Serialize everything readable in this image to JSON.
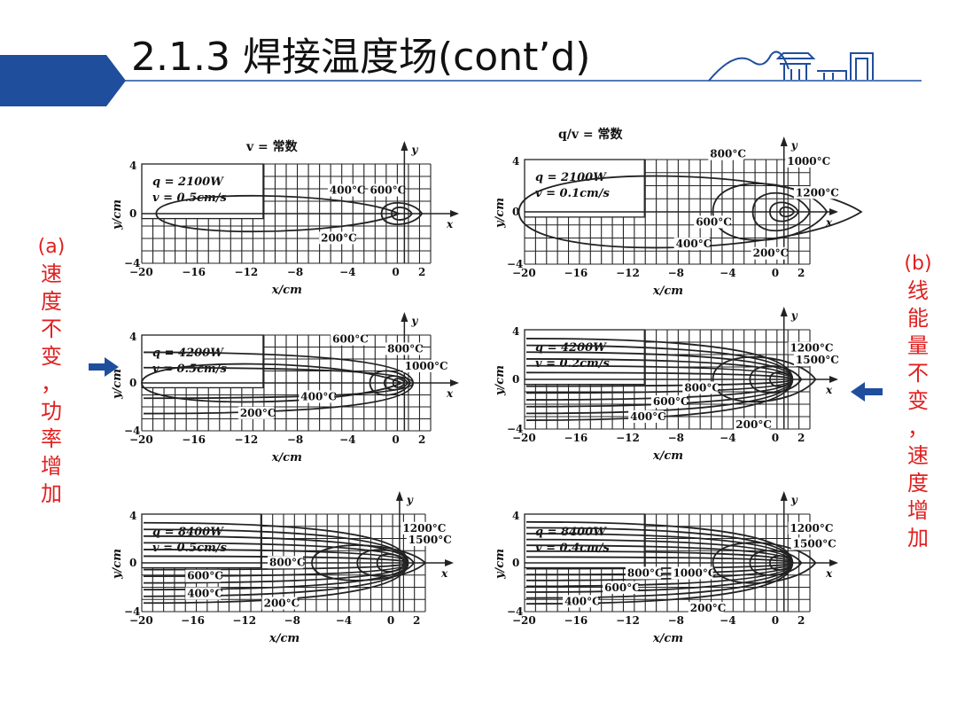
{
  "title": "2.1.3 焊接温度场(cont’d)",
  "colors": {
    "accent_blue": "#1f4e9c",
    "label_red": "#e02020",
    "line": "#222222"
  },
  "left_label": [
    "(a)",
    "速",
    "度",
    "不",
    "变",
    "，",
    "功",
    "率",
    "增",
    "加"
  ],
  "right_label": [
    "(b)",
    "线",
    "能",
    "量",
    "不",
    "变",
    "，",
    "速",
    "度",
    "增",
    "加"
  ],
  "col_a_header": "v = 常数",
  "col_b_header": "q/v = 常数",
  "axis": {
    "x_label": "x/cm",
    "y_label": "y/cm",
    "x_mark": "x",
    "y_mark": "y",
    "x_ticks": [
      "−20",
      "−16",
      "−12",
      "−8",
      "−4",
      "0",
      "2"
    ],
    "y_ticks": [
      "4",
      "0",
      "−4"
    ]
  },
  "panels": [
    {
      "id": "a1",
      "q": "q = 2100W",
      "v": "v = 0.5cm/s",
      "labels": [
        "400°C",
        "600°C",
        "200°C"
      ]
    },
    {
      "id": "a2",
      "q": "q = 4200W",
      "v": "v = 0.5cm/s",
      "labels": [
        "600°C",
        "800°C",
        "1000°C",
        "400°C",
        "200°C"
      ]
    },
    {
      "id": "a3",
      "q": "q = 8400W",
      "v": "v = 0.5cm/s",
      "labels": [
        "1200°C",
        "1500°C",
        "800°C",
        "600°C",
        "400°C",
        "200°C"
      ]
    },
    {
      "id": "b1",
      "q": "q = 2100W",
      "v": "v = 0.1cm/s",
      "labels": [
        "800°C",
        "1000°C",
        "1200°C",
        "600°C",
        "400°C",
        "200°C"
      ]
    },
    {
      "id": "b2",
      "q": "q = 4200W",
      "v": "v = 0.2cm/s",
      "labels": [
        "1200°C",
        "1500°C",
        "800°C",
        "600°C",
        "400°C",
        "200°C"
      ]
    },
    {
      "id": "b3",
      "q": "q = 8400W",
      "v": "v = 0.4cm/s",
      "labels": [
        "1200°C",
        "1500°C",
        "800°C",
        "1000°C",
        "600°C",
        "400°C",
        "200°C"
      ]
    }
  ]
}
